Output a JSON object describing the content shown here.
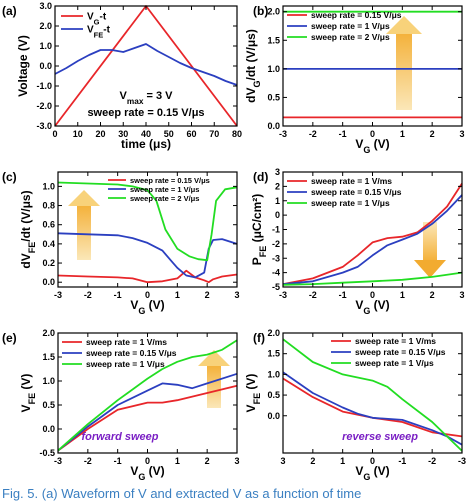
{
  "caption": "Fig. 5.   (a) Waveform of V   and extracted V    as a function of time",
  "chart_data": [
    {
      "id": "a",
      "type": "line",
      "panel_label": "(a)",
      "xlabel": "time (μs)",
      "ylabel": "Voltage (V)",
      "xlim": [
        0,
        80
      ],
      "ylim": [
        -3.0,
        3.0
      ],
      "xticks": [
        "0",
        "10",
        "20",
        "30",
        "40",
        "50",
        "60",
        "70",
        "80"
      ],
      "yticks": [
        "-3.0",
        "-2.0",
        "-1.0",
        "0.0",
        "1.0",
        "2.0",
        "3.0"
      ],
      "legend": "top-left",
      "annotations": [
        "V",
        "= 3 V",
        "sweep rate = 0.15 V/μs"
      ],
      "series": [
        {
          "name": "V",
          "name_sub": "G",
          "name_suffix": "-t",
          "color": "#e8262a",
          "x": [
            0,
            40,
            80
          ],
          "y": [
            -3.0,
            3.0,
            -3.0
          ]
        },
        {
          "name": "V",
          "name_sub": "FE",
          "name_suffix": "-t",
          "color": "#2b3fc0",
          "x": [
            0,
            5,
            10,
            15,
            20,
            25,
            30,
            35,
            40,
            45,
            50,
            55,
            60,
            65,
            70,
            75,
            80
          ],
          "y": [
            -0.4,
            -0.1,
            0.25,
            0.55,
            0.8,
            0.8,
            0.7,
            0.9,
            1.1,
            0.75,
            0.45,
            0.15,
            -0.1,
            -0.3,
            -0.5,
            -0.75,
            -0.95
          ]
        }
      ]
    },
    {
      "id": "b",
      "type": "line",
      "panel_label": "(b)",
      "xlabel": "V",
      "xlabel_sub": "G",
      "xlabel_suffix": " (V)",
      "ylabel": "dV",
      "ylabel_sub": "G",
      "ylabel_suffix": "/dt (V/μs)",
      "xlim": [
        -3,
        3
      ],
      "ylim": [
        0,
        2.1
      ],
      "xticks": [
        "-3",
        "-2",
        "-1",
        "0",
        "1",
        "2",
        "3"
      ],
      "yticks": [
        "0.0",
        "0.5",
        "1.0",
        "1.5",
        "2.0"
      ],
      "legend": "top-left",
      "series": [
        {
          "name": "sweep rate = 0.15 V/μs",
          "color": "#e8262a",
          "x": [
            -3,
            3
          ],
          "y": [
            0.15,
            0.15
          ]
        },
        {
          "name": "sweep rate = 1 V/μs",
          "color": "#2b3fc0",
          "x": [
            -3,
            3
          ],
          "y": [
            1.0,
            1.0
          ]
        },
        {
          "name": "sweep rate = 2 V/μs",
          "color": "#22dd22",
          "x": [
            -3,
            3
          ],
          "y": [
            2.0,
            2.0
          ]
        }
      ]
    },
    {
      "id": "c",
      "type": "line",
      "panel_label": "(c)",
      "xlabel": "V",
      "xlabel_sub": "G",
      "xlabel_suffix": " (V)",
      "ylabel": "dV",
      "ylabel_sub": "FE",
      "ylabel_suffix": "/dt (V/μs)",
      "xlim": [
        -3,
        3
      ],
      "ylim": [
        -0.05,
        1.15
      ],
      "xticks": [
        "-3",
        "-2",
        "-1",
        "0",
        "1",
        "2",
        "3"
      ],
      "yticks": [
        "0.0",
        "0.2",
        "0.4",
        "0.6",
        "0.8",
        "1.0"
      ],
      "legend": "top-right",
      "series": [
        {
          "name": "sweep rate = 0.15 V/μs",
          "color": "#e8262a",
          "x": [
            -3,
            -2,
            -1,
            -0.5,
            0,
            0.5,
            1.0,
            1.3,
            1.6,
            1.9,
            2.05,
            2.2,
            2.5,
            3
          ],
          "y": [
            0.07,
            0.06,
            0.05,
            0.04,
            0.0,
            0.01,
            0.04,
            0.12,
            0.05,
            0.02,
            0.0,
            0.03,
            0.06,
            0.08
          ]
        },
        {
          "name": "sweep rate = 1 V/μs",
          "color": "#2b3fc0",
          "x": [
            -3,
            -2,
            -1,
            -0.5,
            0,
            0.5,
            0.8,
            1.0,
            1.3,
            1.6,
            1.9,
            2.05,
            2.2,
            2.5,
            3
          ],
          "y": [
            0.51,
            0.5,
            0.49,
            0.46,
            0.41,
            0.33,
            0.22,
            0.15,
            0.07,
            0.05,
            0.1,
            0.35,
            0.44,
            0.45,
            0.4
          ]
        },
        {
          "name": "sweep rate = 2 V/μs",
          "color": "#22dd22",
          "x": [
            -3,
            -2,
            -1,
            -0.5,
            0,
            0.3,
            0.6,
            1.0,
            1.4,
            1.7,
            2.0,
            2.15,
            2.3,
            2.6,
            3
          ],
          "y": [
            1.04,
            1.03,
            1.02,
            1.0,
            0.96,
            0.85,
            0.55,
            0.35,
            0.27,
            0.24,
            0.23,
            0.5,
            0.85,
            0.97,
            0.99
          ]
        }
      ]
    },
    {
      "id": "d",
      "type": "line",
      "panel_label": "(d)",
      "xlabel": "V",
      "xlabel_sub": "G",
      "xlabel_suffix": " (V)",
      "ylabel": "P",
      "ylabel_sub": "FE",
      "ylabel_suffix": " (μC/cm²)",
      "xlim": [
        -3,
        3
      ],
      "ylim": [
        -5,
        3
      ],
      "xticks": [
        "-3",
        "-2",
        "-1",
        "0",
        "1",
        "2",
        "3"
      ],
      "yticks": [
        "-5",
        "-4",
        "-3",
        "-2",
        "-1",
        "0",
        "1",
        "2",
        "3"
      ],
      "legend": "top-left",
      "series": [
        {
          "name": "sweep rate = 1 V/ms",
          "color": "#e8262a",
          "x": [
            -3,
            -2,
            -1,
            -0.5,
            0,
            0.5,
            1.0,
            1.5,
            2,
            2.5,
            3
          ],
          "y": [
            -4.8,
            -4.4,
            -3.6,
            -2.8,
            -1.9,
            -1.6,
            -1.5,
            -1.2,
            -0.4,
            0.6,
            2.2
          ]
        },
        {
          "name": "sweep rate = 0.15 V/μs",
          "color": "#2b3fc0",
          "x": [
            -3,
            -2,
            -1,
            -0.5,
            0,
            0.5,
            1.0,
            1.5,
            2,
            2.5,
            3
          ],
          "y": [
            -4.8,
            -4.6,
            -4.0,
            -3.6,
            -2.8,
            -2.1,
            -1.7,
            -1.3,
            -0.6,
            0.3,
            1.4
          ]
        },
        {
          "name": "sweep rate = 1 V/μs",
          "color": "#22dd22",
          "x": [
            -3,
            -2,
            -1,
            0,
            1,
            2,
            3
          ],
          "y": [
            -4.85,
            -4.8,
            -4.7,
            -4.6,
            -4.5,
            -4.3,
            -4.0
          ]
        }
      ]
    },
    {
      "id": "e",
      "type": "line",
      "panel_label": "(e)",
      "xlabel": "V",
      "xlabel_sub": "G",
      "xlabel_suffix": " (V)",
      "ylabel": "V",
      "ylabel_sub": "FE",
      "ylabel_suffix": " (V)",
      "xlim": [
        -3,
        3
      ],
      "ylim": [
        -0.5,
        2.0
      ],
      "xticks": [
        "-3",
        "-2",
        "-1",
        "0",
        "1",
        "2",
        "3"
      ],
      "yticks": [
        "-0.5",
        "0.0",
        "0.5",
        "1.0",
        "1.5",
        "2.0"
      ],
      "legend": "top-left",
      "annotations": [
        "forward sweep"
      ],
      "series": [
        {
          "name": "sweep rate = 1 V/ms",
          "color": "#e8262a",
          "x": [
            -3,
            -2,
            -1,
            0,
            0.5,
            1,
            2,
            3
          ],
          "y": [
            -0.45,
            0.0,
            0.4,
            0.55,
            0.55,
            0.6,
            0.75,
            0.9
          ]
        },
        {
          "name": "sweep rate = 0.15 V/μs",
          "color": "#2b3fc0",
          "x": [
            -3,
            -2,
            -1,
            0,
            0.5,
            1,
            1.5,
            2,
            3
          ],
          "y": [
            -0.45,
            0.05,
            0.5,
            0.8,
            0.95,
            0.92,
            0.85,
            0.95,
            1.15
          ]
        },
        {
          "name": "sweep rate = 1 V/μs",
          "color": "#22dd22",
          "x": [
            -3,
            -2,
            -1,
            0,
            0.5,
            1,
            1.5,
            2,
            2.5,
            3
          ],
          "y": [
            -0.45,
            0.1,
            0.6,
            1.05,
            1.25,
            1.4,
            1.5,
            1.55,
            1.65,
            1.85
          ]
        }
      ]
    },
    {
      "id": "f",
      "type": "line",
      "panel_label": "(f)",
      "xlabel": "V",
      "xlabel_sub": "G",
      "xlabel_suffix": " (V)",
      "ylabel": "V",
      "ylabel_sub": "FE",
      "ylabel_suffix": " (V)",
      "xlim": [
        3,
        -3
      ],
      "ylim": [
        -0.9,
        2.0
      ],
      "xticks": [
        "3",
        "2",
        "1",
        "0",
        "-1",
        "-2",
        "-3"
      ],
      "yticks": [
        "0.0",
        "0.5",
        "1.0",
        "1.5",
        "2.0"
      ],
      "legend": "top-right",
      "annotations": [
        "reverse sweep"
      ],
      "series": [
        {
          "name": "sweep rate = 1 V/ms",
          "color": "#e8262a",
          "x": [
            3,
            2,
            1,
            0,
            -1,
            -2,
            -3
          ],
          "y": [
            0.9,
            0.45,
            0.1,
            -0.05,
            -0.15,
            -0.4,
            -0.5
          ]
        },
        {
          "name": "sweep rate = 0.15 V/μs",
          "color": "#2b3fc0",
          "x": [
            3,
            2,
            1,
            0.5,
            0,
            -1,
            -2,
            -2.5,
            -3
          ],
          "y": [
            1.05,
            0.55,
            0.2,
            0.05,
            -0.05,
            -0.1,
            -0.35,
            -0.5,
            -0.7
          ]
        },
        {
          "name": "sweep rate = 1 V/μs",
          "color": "#22dd22",
          "x": [
            3,
            2,
            1,
            0,
            -0.5,
            -1,
            -2,
            -3
          ],
          "y": [
            1.85,
            1.3,
            1.0,
            0.85,
            0.7,
            0.4,
            -0.15,
            -0.85
          ]
        }
      ]
    }
  ]
}
